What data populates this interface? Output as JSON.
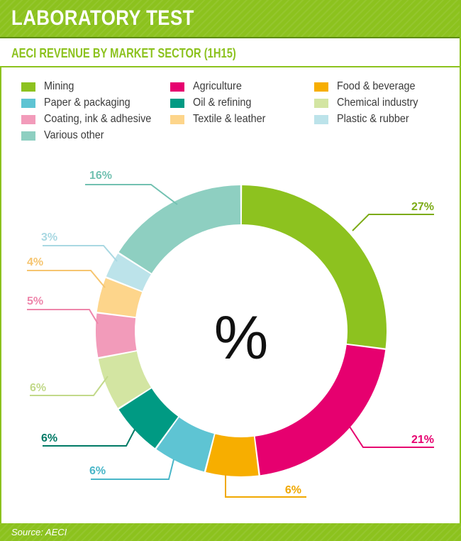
{
  "header": {
    "title": "LABORATORY TEST"
  },
  "subtitle": "AECI REVENUE BY MARKET SECTOR (1H15)",
  "center_symbol": "%",
  "footer": {
    "source": "Source: AECI"
  },
  "chart_data": {
    "type": "pie",
    "style": "donut",
    "title": "AECI REVENUE BY MARKET SECTOR (1H15)",
    "unit": "%",
    "slices": [
      {
        "name": "Mining",
        "value": 27,
        "label": "27%",
        "color": "#8dc21f"
      },
      {
        "name": "Agriculture",
        "value": 21,
        "label": "21%",
        "color": "#e6006f"
      },
      {
        "name": "Food & beverage",
        "value": 6,
        "label": "6%",
        "color": "#f7ae00"
      },
      {
        "name": "Paper & packaging",
        "value": 6,
        "label": "6%",
        "color": "#5ec4d3"
      },
      {
        "name": "Oil & refining",
        "value": 6,
        "label": "6%",
        "color": "#009a83"
      },
      {
        "name": "Chemical industry",
        "value": 6,
        "label": "6%",
        "color": "#d3e5a2"
      },
      {
        "name": "Coating, ink & adhesive",
        "value": 5,
        "label": "5%",
        "color": "#f29bba"
      },
      {
        "name": "Textile & leather",
        "value": 4,
        "label": "4%",
        "color": "#fdd58b"
      },
      {
        "name": "Plastic & rubber",
        "value": 3,
        "label": "3%",
        "color": "#bce3ea"
      },
      {
        "name": "Various other",
        "value": 16,
        "label": "16%",
        "color": "#8ecfc1"
      }
    ],
    "legend": [
      {
        "name": "Mining",
        "color": "#8dc21f"
      },
      {
        "name": "Agriculture",
        "color": "#e6006f"
      },
      {
        "name": "Food & beverage",
        "color": "#f7ae00"
      },
      {
        "name": "Paper & packaging",
        "color": "#5ec4d3"
      },
      {
        "name": "Oil & refining",
        "color": "#009a83"
      },
      {
        "name": "Chemical industry",
        "color": "#d3e5a2"
      },
      {
        "name": "Coating, ink & adhesive",
        "color": "#f29bba"
      },
      {
        "name": "Textile & leather",
        "color": "#fdd58b"
      },
      {
        "name": "Plastic & rubber",
        "color": "#bce3ea"
      },
      {
        "name": "Various other",
        "color": "#8ecfc1"
      }
    ],
    "legend_placement": "top",
    "label_colors": {
      "Mining": "#7cab16",
      "Agriculture": "#e6006f",
      "Food & beverage": "#f0a800",
      "Paper & packaging": "#49b6c8",
      "Oil & refining": "#007a66",
      "Chemical industry": "#c2d98a",
      "Coating, ink & adhesive": "#ee86ab",
      "Textile & leather": "#f6c570",
      "Plastic & rubber": "#a9d8e2",
      "Various other": "#72c1b1"
    }
  }
}
